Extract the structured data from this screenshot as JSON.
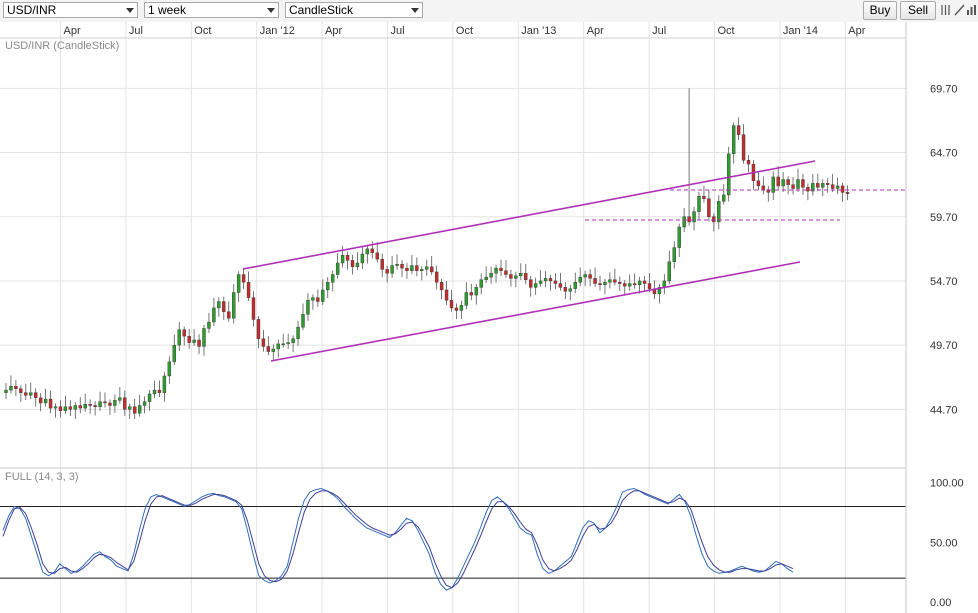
{
  "toolbar": {
    "symbol": "USD/INR",
    "interval": "1 week",
    "chart_type": "CandleStick",
    "buy_label": "Buy",
    "sell_label": "Sell",
    "icons": [
      "crosshair-icon",
      "draw-line-icon",
      "indicator-icon",
      "settings-icon"
    ]
  },
  "chart_data": [
    {
      "type": "candlestick",
      "title": "USD/INR (CandleStick)",
      "period": "1 week",
      "x_tick_labels": [
        "Apr",
        "Jul",
        "Oct",
        "Jan '12",
        "Apr",
        "Jul",
        "Oct",
        "Jan '13",
        "Apr",
        "Jul",
        "Oct",
        "Jan '14",
        "Apr"
      ],
      "y_tick_labels": [
        "69.70",
        "64.70",
        "59.70",
        "54.70",
        "49.70",
        "44.70"
      ],
      "y_ticks": [
        69.7,
        64.7,
        59.7,
        54.7,
        49.7,
        44.7
      ],
      "ylim": [
        40.6,
        74.4
      ],
      "grid": true,
      "colors": {
        "up": "#2e9c2e",
        "down": "#c42d2d",
        "trendline": "#b12fb8",
        "grid": "#e3e3e3"
      },
      "closes": [
        46.2,
        46.5,
        46.3,
        46.0,
        45.8,
        46.0,
        45.6,
        45.2,
        45.5,
        44.8,
        44.9,
        44.6,
        44.9,
        44.7,
        45.0,
        44.8,
        45.1,
        45.0,
        44.9,
        45.3,
        45.2,
        45.0,
        45.4,
        45.6,
        44.7,
        44.9,
        44.4,
        45.0,
        45.3,
        45.9,
        46.2,
        46.0,
        47.3,
        48.4,
        49.7,
        50.9,
        50.4,
        49.9,
        50.1,
        49.6,
        51.0,
        51.5,
        52.6,
        53.1,
        52.3,
        51.8,
        53.8,
        55.2,
        54.6,
        53.4,
        51.7,
        50.2,
        49.6,
        49.2,
        49.4,
        49.8,
        49.8,
        49.9,
        50.2,
        51.1,
        52.1,
        53.2,
        53.4,
        53.1,
        54.0,
        54.6,
        55.2,
        56.1,
        56.7,
        56.3,
        55.8,
        56.1,
        56.8,
        57.2,
        56.9,
        56.4,
        55.6,
        55.3,
        55.9,
        56.0,
        55.7,
        55.5,
        55.9,
        55.5,
        55.6,
        55.8,
        55.4,
        54.6,
        54.0,
        53.2,
        52.6,
        52.4,
        52.8,
        53.8,
        53.6,
        54.2,
        54.8,
        55.0,
        55.3,
        55.7,
        55.5,
        55.2,
        54.9,
        55.1,
        55.3,
        54.8,
        54.2,
        54.5,
        54.7,
        54.9,
        54.7,
        54.5,
        54.2,
        53.9,
        54.1,
        54.6,
        55.0,
        55.2,
        54.9,
        54.5,
        54.4,
        54.6,
        54.8,
        54.6,
        54.5,
        54.3,
        54.5,
        54.4,
        54.7,
        54.5,
        54.1,
        53.7,
        54.2,
        54.7,
        56.2,
        57.3,
        58.9,
        59.7,
        59.3,
        60.1,
        61.3,
        61.1,
        59.7,
        59.3,
        60.9,
        61.4,
        64.6,
        66.8,
        66.1,
        64.1,
        63.8,
        62.5,
        62.1,
        61.8,
        61.6,
        62.8,
        62.1,
        62.6,
        62.2,
        61.9,
        62.6,
        62.0,
        61.7,
        62.3,
        62.0,
        62.3,
        62.2,
        61.9,
        62.1,
        61.6,
        61.5
      ],
      "channel": {
        "upper": {
          "from": [
            "Nov 2011",
            56.2
          ],
          "to": [
            "Feb 2014",
            64.0
          ]
        },
        "lower": {
          "from": [
            "Jan 2012",
            49.3
          ],
          "to": [
            "Feb 2014",
            56.3
          ]
        }
      },
      "support_lines": [
        {
          "style": "dashed",
          "value": 61.8
        },
        {
          "style": "dashed",
          "value": 58.9
        }
      ]
    },
    {
      "type": "line",
      "title": "FULL (14, 3, 3)",
      "y_tick_labels": [
        "100.00",
        "50.00",
        "0.00"
      ],
      "ylim": [
        -5,
        108
      ],
      "reference_lines": [
        80,
        20
      ],
      "series": [
        {
          "color": "#2f6fb8",
          "values": [
            60,
            72,
            80,
            78,
            70,
            55,
            40,
            25,
            22,
            25,
            32,
            28,
            24,
            26,
            30,
            35,
            40,
            42,
            38,
            35,
            30,
            28,
            26,
            40,
            60,
            78,
            88,
            90,
            88,
            86,
            84,
            82,
            80,
            82,
            85,
            88,
            90,
            91,
            89,
            88,
            86,
            84,
            78,
            60,
            40,
            22,
            18,
            16,
            18,
            22,
            30,
            50,
            70,
            85,
            92,
            94,
            95,
            93,
            90,
            86,
            80,
            75,
            70,
            66,
            62,
            60,
            58,
            56,
            54,
            58,
            64,
            70,
            68,
            60,
            50,
            40,
            25,
            15,
            10,
            12,
            20,
            30,
            40,
            50,
            62,
            75,
            85,
            88,
            84,
            78,
            70,
            62,
            58,
            56,
            40,
            28,
            24,
            26,
            30,
            34,
            38,
            50,
            62,
            68,
            66,
            58,
            62,
            70,
            80,
            92,
            94,
            95,
            93,
            90,
            88,
            86,
            84,
            82,
            86,
            90,
            84,
            72,
            55,
            40,
            30,
            26,
            24,
            25,
            26,
            28,
            30,
            28,
            26,
            25,
            26,
            30,
            34,
            32,
            28,
            25
          ]
        },
        {
          "color": "#3d3d9a",
          "values": [
            55,
            68,
            78,
            79,
            74,
            62,
            48,
            32,
            25,
            24,
            28,
            29,
            26,
            25,
            28,
            32,
            37,
            40,
            39,
            37,
            33,
            30,
            27,
            34,
            50,
            68,
            82,
            88,
            89,
            87,
            85,
            83,
            81,
            81,
            83,
            86,
            88,
            90,
            90,
            89,
            87,
            85,
            81,
            68,
            50,
            32,
            22,
            18,
            17,
            19,
            26,
            40,
            58,
            75,
            86,
            91,
            93,
            93,
            91,
            88,
            83,
            78,
            73,
            69,
            65,
            62,
            60,
            58,
            56,
            57,
            61,
            66,
            67,
            63,
            55,
            46,
            33,
            22,
            14,
            12,
            16,
            24,
            34,
            44,
            55,
            67,
            78,
            84,
            84,
            80,
            74,
            67,
            61,
            58,
            48,
            35,
            28,
            26,
            28,
            31,
            35,
            44,
            55,
            63,
            65,
            61,
            62,
            66,
            74,
            85,
            90,
            93,
            93,
            91,
            89,
            87,
            85,
            83,
            84,
            87,
            85,
            78,
            64,
            50,
            38,
            31,
            27,
            25,
            25,
            27,
            28,
            28,
            27,
            26,
            26,
            28,
            31,
            32,
            30,
            28
          ]
        }
      ]
    }
  ]
}
